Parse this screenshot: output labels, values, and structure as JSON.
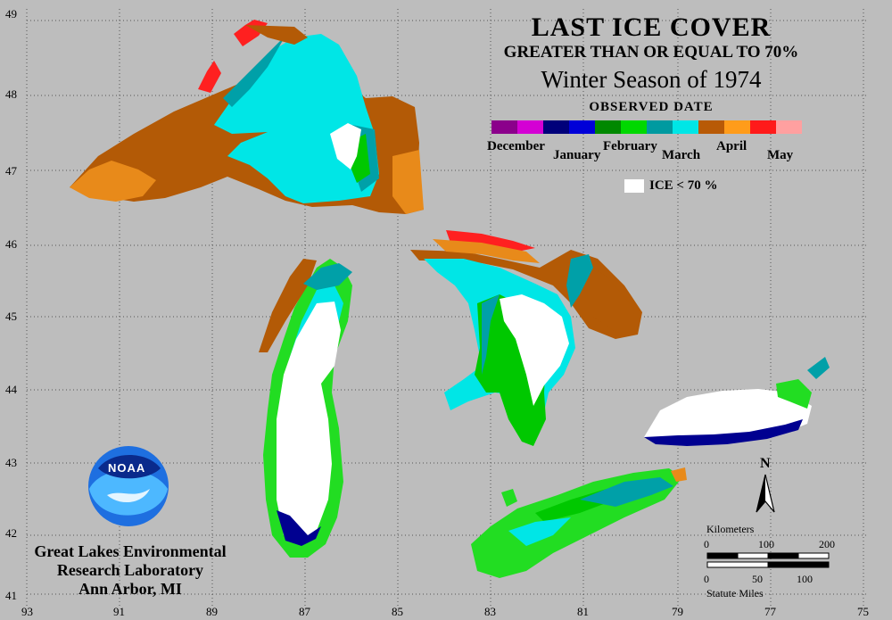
{
  "title": {
    "line1": "LAST ICE COVER",
    "line2": "GREATER THAN OR EQUAL TO 70%",
    "line3": "Winter Season of 1974",
    "legend_title": "OBSERVED DATE"
  },
  "legend": {
    "months": [
      "December",
      "January",
      "February",
      "March",
      "April",
      "May"
    ],
    "colors": [
      "#8b008b",
      "#d400d4",
      "#00007a",
      "#0000d8",
      "#008800",
      "#00d800",
      "#009aa0",
      "#00e6e6",
      "#b85a06",
      "#ff9c1a",
      "#ff1a1a",
      "#ffa0a0"
    ],
    "ice_label": "ICE < 70 %"
  },
  "axes": {
    "latitudes": [
      "49",
      "48",
      "47",
      "46",
      "45",
      "44",
      "43",
      "42",
      "41"
    ],
    "longitudes": [
      "93",
      "91",
      "89",
      "87",
      "85",
      "83",
      "81",
      "79",
      "77",
      "75"
    ]
  },
  "organization": {
    "line1": "Great Lakes Environmental",
    "line2": "Research Laboratory",
    "line3": "Ann Arbor, MI",
    "logo_text": "NOAA"
  },
  "scale": {
    "km_label": "Kilometers",
    "km_ticks": [
      "0",
      "100",
      "200"
    ],
    "mi_label": "Statute Miles",
    "mi_ticks": [
      "0",
      "50",
      "100"
    ]
  },
  "north_label": "N",
  "region_colors": {
    "ice_low": "#ffffff",
    "cyan": "#00e6e6",
    "teal": "#00a0a8",
    "green": "#00c800",
    "bright_green": "#22dd22",
    "brown": "#b35a06",
    "orange": "#e88a1a",
    "red": "#ff2020",
    "navy": "#000090"
  }
}
